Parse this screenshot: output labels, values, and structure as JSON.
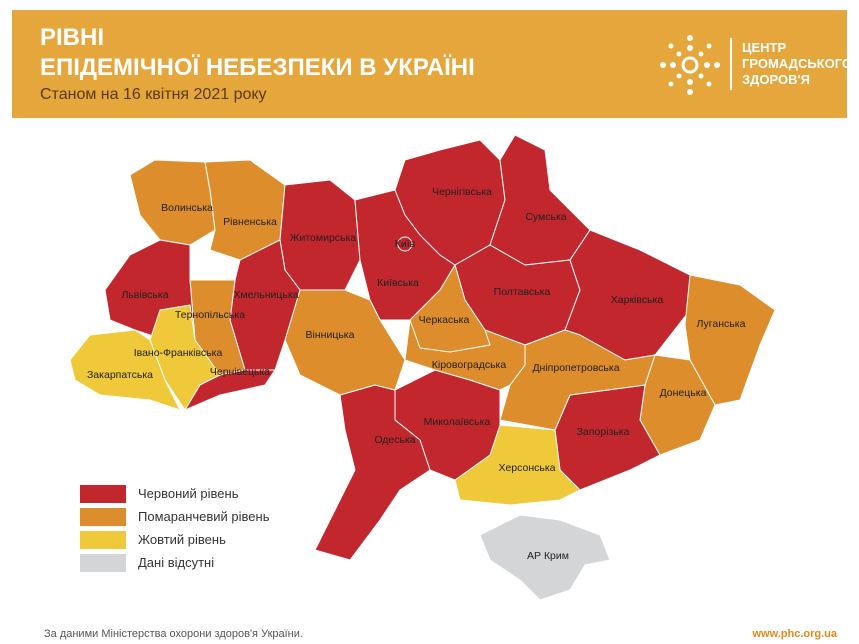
{
  "header": {
    "title_line1": "РІВНІ",
    "title_line2": "ЕПІДЕМІЧНОЇ НЕБЕЗПЕКИ В УКРАЇНІ",
    "subtitle": "Станом на 16 квітня 2021 року"
  },
  "logo": {
    "lines": [
      "ЦЕНТР",
      "ГРОМАДСЬКОГО",
      "ЗДОРОВ'Я"
    ]
  },
  "legend": [
    {
      "label": "Червоний рівень",
      "color": "#c1272d"
    },
    {
      "label": "Помаранчевий рівень",
      "color": "#de8d2c"
    },
    {
      "label": "Жовтий рівень",
      "color": "#f0c93a"
    },
    {
      "label": "Дані відсутні",
      "color": "#d4d5d7"
    }
  ],
  "regions": [
    {
      "name": "Волинська",
      "color": "#de8d2c"
    },
    {
      "name": "Рівненська",
      "color": "#de8d2c"
    },
    {
      "name": "Житомирська",
      "color": "#c1272d"
    },
    {
      "name": "Київська",
      "color": "#c1272d"
    },
    {
      "name": "Чернігівська",
      "color": "#c1272d"
    },
    {
      "name": "Сумська",
      "color": "#c1272d"
    },
    {
      "name": "Полтавська",
      "color": "#c1272d"
    },
    {
      "name": "Харківська",
      "color": "#c1272d"
    },
    {
      "name": "Луганська",
      "color": "#de8d2c"
    },
    {
      "name": "Донецька",
      "color": "#de8d2c"
    },
    {
      "name": "Запорізька",
      "color": "#c1272d"
    },
    {
      "name": "Дніпропетровська",
      "color": "#de8d2c"
    },
    {
      "name": "Херсонська",
      "color": "#f0c93a"
    },
    {
      "name": "Миколаївська",
      "color": "#c1272d"
    },
    {
      "name": "Одеська",
      "color": "#c1272d"
    },
    {
      "name": "Кіровоградська",
      "color": "#de8d2c"
    },
    {
      "name": "Черкаська",
      "color": "#de8d2c"
    },
    {
      "name": "Вінницька",
      "color": "#de8d2c"
    },
    {
      "name": "Хмельницька",
      "color": "#c1272d"
    },
    {
      "name": "Тернопільська",
      "color": "#de8d2c"
    },
    {
      "name": "Львівська",
      "color": "#c1272d"
    },
    {
      "name": "Івано-Франківська",
      "color": "#f0c93a"
    },
    {
      "name": "Чернівецька",
      "color": "#c1272d"
    },
    {
      "name": "Закарпатська",
      "color": "#f0c93a"
    },
    {
      "name": "АР Крим",
      "color": "#d4d5d7"
    }
  ],
  "city": {
    "name": "Київ",
    "color": "#c1272d"
  },
  "footer": {
    "source": "За даними Міністерства охорони здоров'я України.",
    "url": "www.phc.org.ua"
  }
}
